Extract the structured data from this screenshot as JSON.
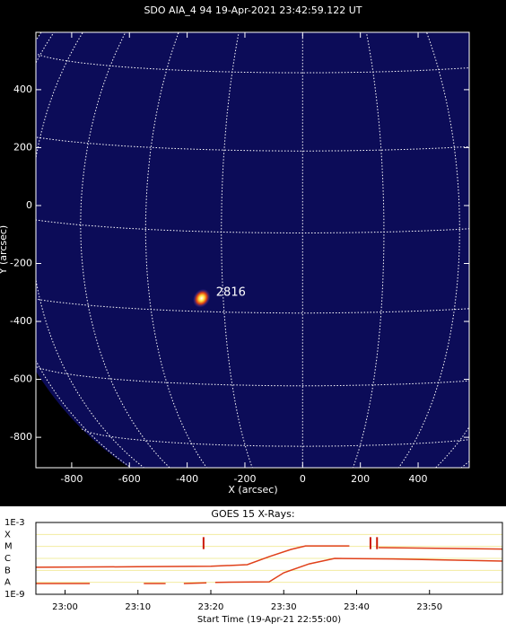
{
  "chart_data": [
    {
      "type": "image",
      "title": "SDO AIA_4 94 19-Apr-2021 23:42:59.122 UT",
      "x_label": "X (arcsec)",
      "y_label": "Y (arcsec)",
      "xlim": [
        -924,
        577
      ],
      "ylim": [
        -905,
        598
      ],
      "xticks": [
        -800,
        -600,
        -400,
        -200,
        0,
        200,
        400
      ],
      "yticks": [
        -800,
        -600,
        -400,
        -200,
        0,
        200,
        400
      ],
      "grid": true,
      "flare": {
        "x": -350,
        "y": -320
      },
      "annotation": {
        "text": "2816",
        "x": -300,
        "y": -300
      }
    },
    {
      "type": "line",
      "title": "GOES 15 X-Rays:",
      "x_label": "Start Time (19-Apr-21 22:55:00)",
      "log_y": true,
      "xlim": [
        1,
        65
      ],
      "ylim": [
        1e-09,
        0.001
      ],
      "xticks": [
        {
          "value": 5,
          "label": "23:00"
        },
        {
          "value": 15,
          "label": "23:10"
        },
        {
          "value": 25,
          "label": "23:20"
        },
        {
          "value": 35,
          "label": "23:30"
        },
        {
          "value": 45,
          "label": "23:40"
        },
        {
          "value": 55,
          "label": "23:50"
        }
      ],
      "yticks": [
        {
          "value": 0.001,
          "label": "1E-3"
        },
        {
          "value": 0.0001,
          "label": "X"
        },
        {
          "value": 1e-05,
          "label": "M"
        },
        {
          "value": 1e-06,
          "label": "C"
        },
        {
          "value": 1e-07,
          "label": "B"
        },
        {
          "value": 1e-08,
          "label": "A"
        },
        {
          "value": 1e-09,
          "label": "1E-9"
        }
      ],
      "grid": true,
      "series": [
        {
          "color": "#e0401a",
          "x": [
            1,
            15,
            25,
            30,
            33,
            36,
            38,
            44,
            46,
            48,
            56,
            65
          ],
          "values": [
            1.8e-07,
            2e-07,
            2.2e-07,
            3e-07,
            1.4e-06,
            5.6e-06,
            1.1e-05,
            1.1e-05,
            null,
            8e-06,
            7e-06,
            6e-06
          ]
        },
        {
          "color": "#e0401a",
          "x": [
            1,
            8.4,
            8.5,
            15.8,
            18.8,
            19,
            21.3,
            24.4,
            24.5,
            25.6,
            33,
            35,
            38.5,
            42,
            50,
            65
          ],
          "values": [
            8e-09,
            8e-09,
            null,
            8e-09,
            8e-09,
            null,
            8e-09,
            9e-09,
            null,
            1e-08,
            1.1e-08,
            6.3e-08,
            3.5e-07,
            1e-06,
            9e-07,
            6e-07
          ]
        }
      ],
      "markers": {
        "color": "#cc1a00",
        "x": [
          24,
          46.9,
          47.8
        ]
      }
    }
  ]
}
